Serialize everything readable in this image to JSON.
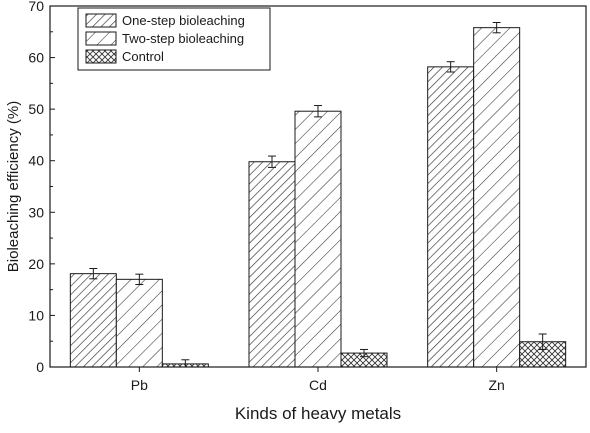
{
  "chart_data": {
    "type": "bar",
    "title": "",
    "xlabel": "Kinds of heavy metals",
    "ylabel": "Bioleaching efficiency (%)",
    "categories": [
      "Pb",
      "Cd",
      "Zn"
    ],
    "ylim": [
      0,
      70
    ],
    "yticks": [
      0,
      10,
      20,
      30,
      40,
      50,
      60,
      70
    ],
    "grid": false,
    "legend_position": "top-left",
    "series": [
      {
        "name": "One-step bioleaching",
        "pattern": "hatch-dense",
        "values": [
          18.1,
          39.8,
          58.2
        ],
        "errors": [
          1.0,
          1.1,
          1.0
        ]
      },
      {
        "name": "Two-step bioleaching",
        "pattern": "hatch-sparse",
        "values": [
          17.0,
          49.6,
          65.8
        ],
        "errors": [
          1.0,
          1.1,
          1.0
        ]
      },
      {
        "name": "Control",
        "pattern": "crosshatch",
        "values": [
          0.6,
          2.7,
          4.9
        ],
        "errors": [
          0.8,
          0.7,
          1.5
        ]
      }
    ]
  }
}
